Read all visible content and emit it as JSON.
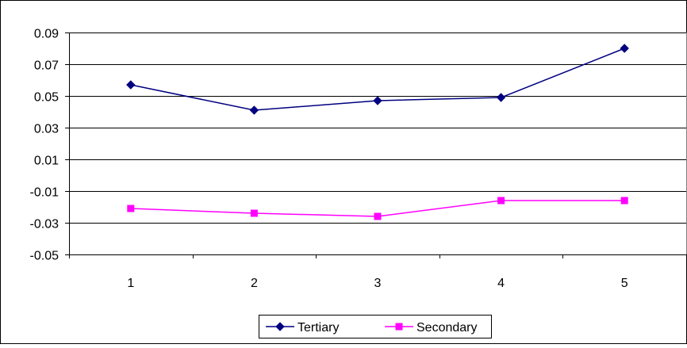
{
  "chart_data": {
    "type": "line",
    "title": "",
    "xlabel": "",
    "ylabel": "",
    "categories": [
      "1",
      "2",
      "3",
      "4",
      "5"
    ],
    "ylim": [
      -0.05,
      0.09
    ],
    "yticks": [
      "0.09",
      "0.07",
      "0.05",
      "0.03",
      "0.01",
      "-0.01",
      "-0.03",
      "-0.05"
    ],
    "ytick_values": [
      0.09,
      0.07,
      0.05,
      0.03,
      0.01,
      -0.01,
      -0.03,
      -0.05
    ],
    "grid": "horizontal",
    "legend_position": "bottom",
    "series": [
      {
        "name": "Tertiary",
        "color": "#000080",
        "marker": "diamond",
        "values": [
          0.057,
          0.041,
          0.047,
          0.049,
          0.08
        ]
      },
      {
        "name": "Secondary",
        "color": "#FF00FF",
        "marker": "square",
        "values": [
          -0.021,
          -0.024,
          -0.026,
          -0.016,
          -0.016
        ]
      }
    ]
  }
}
